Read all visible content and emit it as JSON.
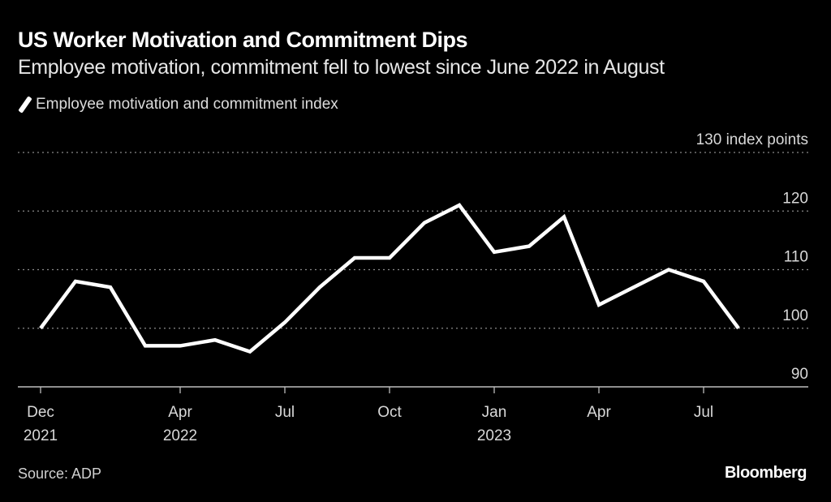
{
  "header": {
    "title": "US Worker Motivation and Commitment Dips",
    "subtitle": "Employee motivation, commitment fell to lowest since June 2022 in August"
  },
  "legend": {
    "label": "Employee motivation and commitment index",
    "color": "#ffffff"
  },
  "footer": {
    "source": "Source: ADP",
    "brand": "Bloomberg"
  },
  "chart_data": {
    "type": "line",
    "title": "US Worker Motivation and Commitment Dips",
    "subtitle": "Employee motivation, commitment fell to lowest since June 2022 in August",
    "xlabel": "",
    "ylabel": "index points",
    "y_unit_label": "index points",
    "ylim": [
      90,
      130
    ],
    "yticks": [
      90,
      100,
      110,
      120,
      130
    ],
    "ytick_labels": [
      "90",
      "100",
      "110",
      "120",
      "130"
    ],
    "grid": true,
    "legend_position": "top-left",
    "x": [
      "2021-12",
      "2022-01",
      "2022-02",
      "2022-03",
      "2022-04",
      "2022-05",
      "2022-06",
      "2022-07",
      "2022-08",
      "2022-09",
      "2022-10",
      "2022-11",
      "2022-12",
      "2023-01",
      "2023-02",
      "2023-03",
      "2023-04",
      "2023-05",
      "2023-06",
      "2023-07",
      "2023-08"
    ],
    "xticks": [
      {
        "index": 0,
        "label": "Dec",
        "sublabel": "2021"
      },
      {
        "index": 4,
        "label": "Apr",
        "sublabel": "2022"
      },
      {
        "index": 7,
        "label": "Jul",
        "sublabel": ""
      },
      {
        "index": 10,
        "label": "Oct",
        "sublabel": ""
      },
      {
        "index": 13,
        "label": "Jan",
        "sublabel": "2023"
      },
      {
        "index": 16,
        "label": "Apr",
        "sublabel": ""
      },
      {
        "index": 19,
        "label": "Jul",
        "sublabel": ""
      }
    ],
    "series": [
      {
        "name": "Employee motivation and commitment index",
        "color": "#ffffff",
        "values": [
          100,
          108,
          107,
          97,
          97,
          98,
          96,
          101,
          107,
          112,
          112,
          118,
          121,
          113,
          114,
          119,
          104,
          107,
          110,
          108,
          100
        ]
      }
    ]
  }
}
